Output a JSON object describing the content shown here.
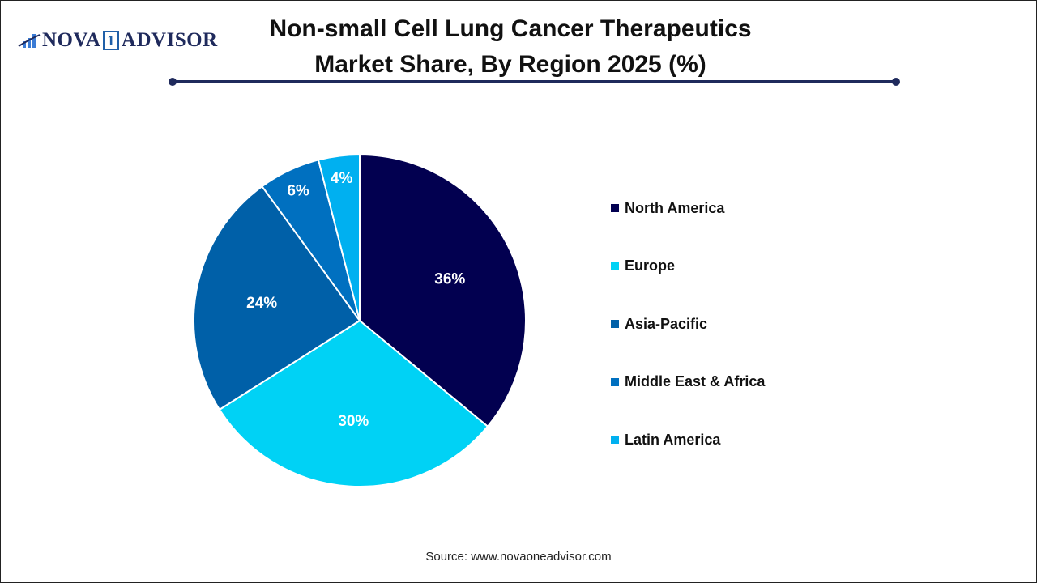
{
  "logo": {
    "text_left": "NOVA",
    "text_mid": "1",
    "text_right": "ADVISOR"
  },
  "chart_data": {
    "type": "pie",
    "title": "Non-small Cell Lung Cancer Therapeutics Market Share, By Region 2025 (%)",
    "categories": [
      "North America",
      "Europe",
      "Asia-Pacific",
      "Middle East & Africa",
      "Latin America"
    ],
    "values": [
      36,
      30,
      24,
      6,
      4
    ],
    "labels": [
      "36%",
      "30%",
      "24%",
      "6%",
      "4%"
    ],
    "colors": [
      "#020050",
      "#00d2f5",
      "#0060a8",
      "#0070c0",
      "#00b0f0"
    ],
    "legend_placement": "right",
    "start_angle": "top, clockwise"
  },
  "source": "Source: www.novaoneadvisor.com"
}
